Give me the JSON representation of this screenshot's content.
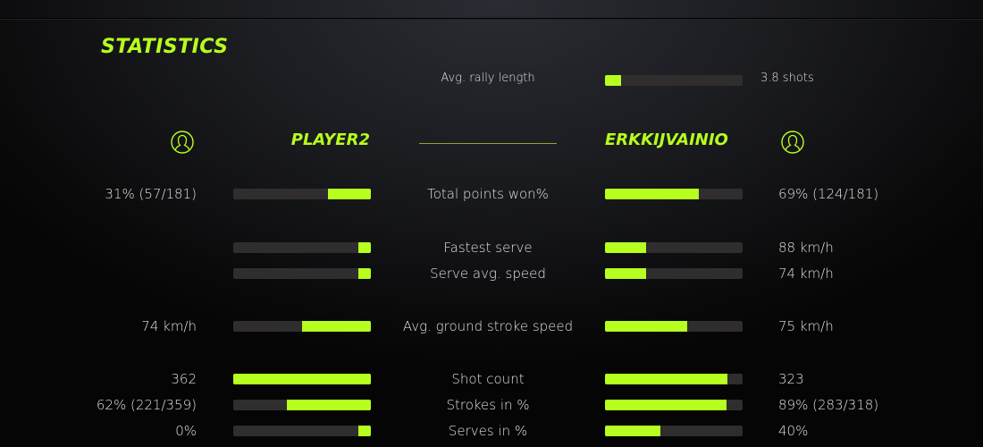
{
  "title": "STATISTICS",
  "accent_color": "#b6ff1f",
  "rally": {
    "label": "Avg. rally length",
    "value": "3.8 shots",
    "fill_pct": 12
  },
  "players": {
    "left": {
      "name": "PLAYER2",
      "icon": "user-icon"
    },
    "right": {
      "name": "ERKKIJVAINIO",
      "icon": "user-icon"
    }
  },
  "rows": [
    {
      "label": "Total points won%",
      "left": "31% (57/181)",
      "right": "69% (124/181)",
      "left_pct": 31,
      "right_pct": 68
    },
    {
      "label": "Fastest serve",
      "left": "",
      "right": "88 km/h",
      "left_pct": 9,
      "right_pct": 30
    },
    {
      "label": "Serve avg. speed",
      "left": "",
      "right": "74 km/h",
      "left_pct": 9,
      "right_pct": 30
    },
    {
      "label": "Avg. ground stroke speed",
      "left": "74 km/h",
      "right": "75 km/h",
      "left_pct": 50,
      "right_pct": 60
    },
    {
      "label": "Shot count",
      "left": "362",
      "right": "323",
      "left_pct": 100,
      "right_pct": 89
    },
    {
      "label": "Strokes in %",
      "left": "62% (221/359)",
      "right": "89% (283/318)",
      "left_pct": 61,
      "right_pct": 88
    },
    {
      "label": "Serves in %",
      "left": "0%",
      "right": "40%",
      "left_pct": 9,
      "right_pct": 40
    }
  ]
}
